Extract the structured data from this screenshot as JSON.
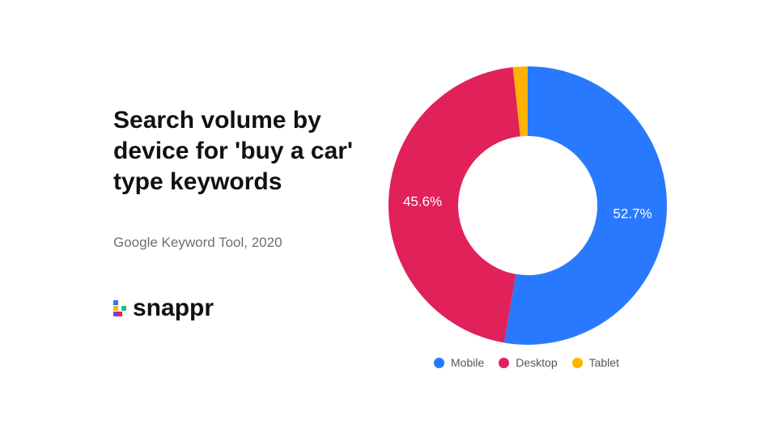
{
  "title": "Search volume by device for 'buy a car' type keywords",
  "source": "Google Keyword Tool, 2020",
  "brand": {
    "name": "snappr"
  },
  "chart_data": {
    "type": "pie",
    "variant": "donut",
    "categories": [
      "Mobile",
      "Desktop",
      "Tablet"
    ],
    "values": [
      52.7,
      45.6,
      1.7
    ],
    "data_labels": [
      "52.7%",
      "45.6%",
      ""
    ],
    "colors": [
      "#2979ff",
      "#e0215a",
      "#ffb300"
    ],
    "legend": "bottom"
  }
}
